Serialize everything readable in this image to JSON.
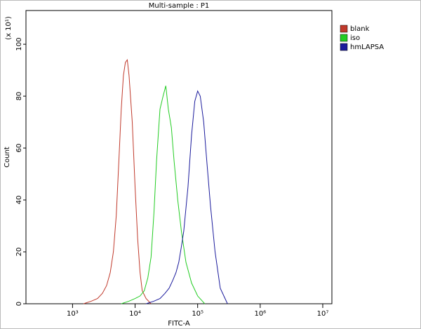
{
  "chart_data": {
    "type": "line",
    "title": "Multi-sample : P1",
    "xlabel": "FITC-A",
    "ylabel": "Count",
    "y_multiplier": "(x 10¹)",
    "log_x": true,
    "xlim": [
      180,
      14000000
    ],
    "xticks": [
      {
        "value": 1000,
        "label": "10³"
      },
      {
        "value": 10000,
        "label": "10⁴"
      },
      {
        "value": 100000,
        "label": "10⁵"
      },
      {
        "value": 1000000,
        "label": "10⁶"
      },
      {
        "value": 10000000,
        "label": "10⁷"
      }
    ],
    "ylim": [
      0,
      113
    ],
    "yticks": [
      0,
      20,
      40,
      60,
      80,
      100
    ],
    "legend": "upper right",
    "series": [
      {
        "name": "blank",
        "color": "#c0392b",
        "x": [
          1500,
          2000,
          2500,
          3000,
          3500,
          4000,
          4500,
          5000,
          5500,
          6000,
          6500,
          7000,
          7500,
          8000,
          9000,
          10000,
          11000,
          12000,
          13000,
          15000,
          18000
        ],
        "values": [
          0,
          1,
          2,
          4,
          7,
          12,
          20,
          34,
          55,
          75,
          88,
          93,
          94,
          88,
          70,
          45,
          25,
          12,
          5,
          2,
          0
        ]
      },
      {
        "name": "iso",
        "color": "#22cc22",
        "x": [
          6000,
          8000,
          10000,
          12000,
          14000,
          16000,
          18000,
          20000,
          22000,
          25000,
          28000,
          31000,
          34000,
          38000,
          42000,
          48000,
          55000,
          65000,
          80000,
          100000,
          130000
        ],
        "values": [
          0,
          1,
          2,
          3,
          5,
          10,
          18,
          35,
          55,
          75,
          80,
          84,
          75,
          68,
          55,
          40,
          28,
          16,
          8,
          3,
          0
        ]
      },
      {
        "name": "hmLAPSA",
        "color": "#1a1a9c",
        "x": [
          15000,
          20000,
          25000,
          30000,
          35000,
          40000,
          45000,
          50000,
          55000,
          60000,
          70000,
          80000,
          90000,
          100000,
          110000,
          125000,
          140000,
          160000,
          190000,
          230000,
          300000
        ],
        "values": [
          0,
          1,
          2,
          4,
          6,
          9,
          12,
          16,
          22,
          28,
          45,
          65,
          78,
          82,
          80,
          70,
          55,
          38,
          20,
          6,
          0
        ]
      }
    ]
  }
}
